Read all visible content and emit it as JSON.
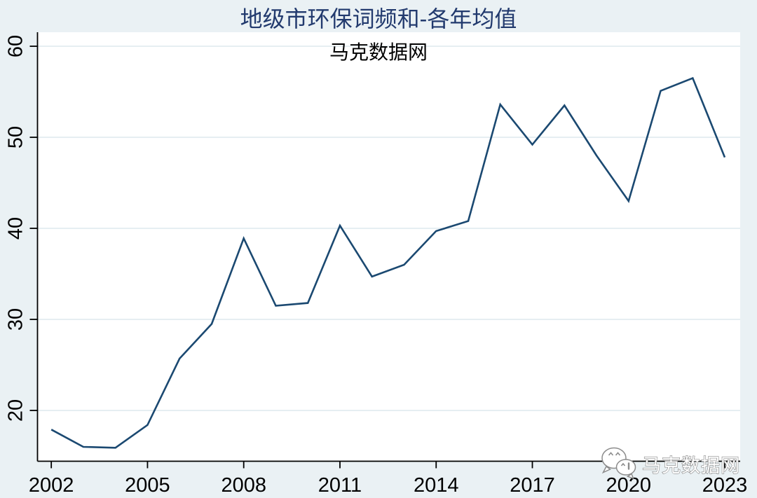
{
  "figure": {
    "watermark": {
      "icon": "wechat-icon",
      "text": "马克数据网"
    }
  },
  "chart_data": {
    "type": "line",
    "title": "地级市环保词频和-各年均值",
    "subtitle": "马克数据网",
    "xlabel": "",
    "ylabel": "",
    "x": [
      2002,
      2003,
      2004,
      2005,
      2006,
      2007,
      2008,
      2009,
      2010,
      2011,
      2012,
      2013,
      2014,
      2015,
      2016,
      2017,
      2018,
      2019,
      2020,
      2021,
      2022,
      2023
    ],
    "series": [
      {
        "name": "地级市环保词频和-各年均值",
        "values": [
          17.9,
          16.0,
          15.9,
          18.4,
          25.7,
          29.5,
          38.9,
          31.5,
          31.8,
          40.3,
          34.7,
          36.0,
          39.7,
          40.8,
          53.6,
          49.2,
          53.5,
          48.0,
          43.0,
          55.1,
          56.5,
          47.8
        ]
      }
    ],
    "xticks": [
      2002,
      2005,
      2008,
      2011,
      2014,
      2017,
      2020,
      2023
    ],
    "yticks": [
      20,
      30,
      40,
      50,
      60
    ],
    "xlim": [
      2001.57,
      2023.48
    ],
    "ylim": [
      14.42,
      61.54
    ],
    "grid": "horizontal",
    "legend": "none",
    "colors": {
      "line": "#1b4971",
      "outer_background": "#eaf1f4",
      "plot_background": "#ffffff",
      "gridline": "#e6eef2",
      "axis": "#000000",
      "tick_label": "#000000",
      "title": "#223a6e",
      "subtitle": "#000000",
      "watermark_fill": "#ffffff",
      "watermark_outline": "#8c8c8c"
    }
  }
}
